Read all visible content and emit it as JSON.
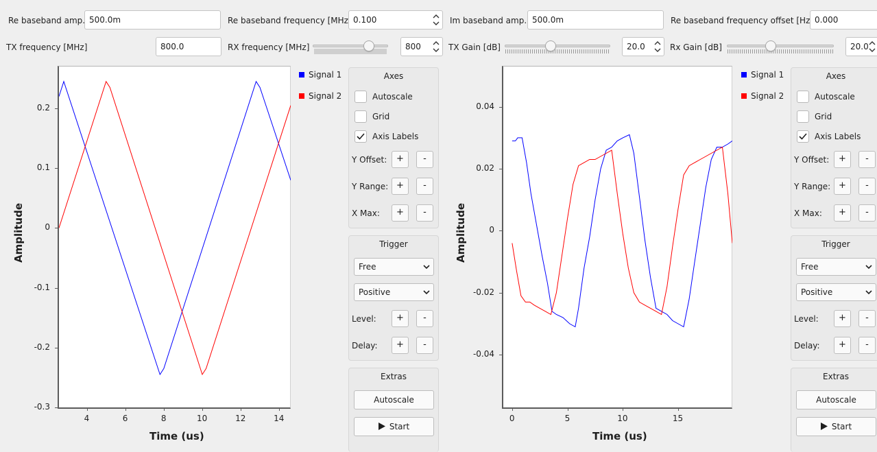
{
  "top_controls": {
    "re_amp": {
      "label": "Re baseband amp.:",
      "value": "500.0m"
    },
    "re_freq": {
      "label": "Re baseband frequency [MHz]",
      "value": "0.100"
    },
    "im_amp": {
      "label": "Im baseband amp.:",
      "value": "500.0m"
    },
    "re_freq_offset": {
      "label": "Re baseband frequency offset  [Hz]",
      "value": "0.000"
    },
    "tx_freq": {
      "label": "TX frequency [MHz]",
      "value": "800.0"
    },
    "rx_freq": {
      "label": "RX frequency [MHz]",
      "value": "800",
      "slider_fraction": 0.78
    },
    "tx_gain": {
      "label": "TX Gain [dB]",
      "value": "20.0",
      "slider_fraction": 0.43
    },
    "rx_gain": {
      "label": "Rx Gain [dB]",
      "value": "20.0",
      "slider_fraction": 0.4
    }
  },
  "legend": {
    "signal1": "Signal 1",
    "signal2": "Signal 2"
  },
  "colors": {
    "signal1": "#0000ff",
    "signal2": "#ff0000"
  },
  "panel": {
    "axes_title": "Axes",
    "autoscale": "Autoscale",
    "grid": "Grid",
    "axis_labels": "Axis Labels",
    "y_offset": "Y Offset:",
    "y_range": "Y Range:",
    "x_max": "X Max:",
    "plus": "+",
    "minus": "-",
    "trigger_title": "Trigger",
    "trigger_mode": "Free",
    "trigger_slope": "Positive",
    "level": "Level:",
    "delay": "Delay:",
    "extras_title": "Extras",
    "autoscale_btn": "Autoscale",
    "start_btn": "Start",
    "autoscale_checked": false,
    "grid_checked": false,
    "axis_labels_checked": true
  },
  "chart_data": [
    {
      "type": "line",
      "xlabel": "Time (us)",
      "ylabel": "Amplitude",
      "xlim": [
        2.55,
        14.6
      ],
      "ylim": [
        -0.3,
        0.27
      ],
      "xticks": [
        "4",
        "6",
        "8",
        "10",
        "12",
        "14"
      ],
      "yticks": [
        "0.2",
        "0.1",
        "0",
        "-0.1",
        "-0.2",
        "-0.3"
      ],
      "grid": false,
      "series": [
        {
          "name": "Signal 1",
          "x": [
            2.55,
            2.8,
            7.8,
            8.0,
            12.8,
            13.0,
            14.6
          ],
          "y": [
            0.22,
            0.245,
            -0.245,
            -0.235,
            0.245,
            0.235,
            0.08
          ]
        },
        {
          "name": "Signal 2",
          "x": [
            2.55,
            5.0,
            5.2,
            10.0,
            10.2,
            14.6
          ],
          "y": [
            0.0,
            0.245,
            0.235,
            -0.245,
            -0.235,
            0.205
          ]
        }
      ]
    },
    {
      "type": "line",
      "xlabel": "Time (us)",
      "ylabel": "Amplitude",
      "xlim": [
        -0.8,
        19.9
      ],
      "ylim": [
        -0.057,
        0.053
      ],
      "xticks": [
        "0",
        "5",
        "10",
        "15"
      ],
      "yticks": [
        "0.04",
        "0.02",
        "0",
        "-0.02",
        "-0.04"
      ],
      "grid": false,
      "series": [
        {
          "name": "Signal 1",
          "x": [
            0.0,
            0.3,
            0.5,
            0.9,
            1.3,
            1.7,
            2.2,
            2.7,
            3.2,
            3.6,
            4.0,
            4.6,
            5.2,
            5.7,
            6.0,
            6.5,
            7.0,
            7.5,
            8.0,
            8.5,
            9.0,
            9.5,
            10.0,
            10.6,
            11.0,
            11.5,
            12.0,
            12.5,
            13.0,
            13.5,
            14.0,
            14.5,
            15.0,
            15.5,
            16.0,
            16.5,
            17.0,
            17.5,
            18.0,
            18.5,
            19.0,
            19.5,
            19.9
          ],
          "y": [
            0.029,
            0.029,
            0.03,
            0.03,
            0.022,
            0.012,
            0.002,
            -0.008,
            -0.017,
            -0.026,
            -0.027,
            -0.028,
            -0.03,
            -0.031,
            -0.025,
            -0.012,
            -0.002,
            0.01,
            0.02,
            0.026,
            0.027,
            0.029,
            0.03,
            0.031,
            0.025,
            0.011,
            -0.003,
            -0.015,
            -0.025,
            -0.026,
            -0.027,
            -0.029,
            -0.03,
            -0.031,
            -0.022,
            -0.01,
            0.002,
            0.014,
            0.023,
            0.027,
            0.027,
            0.028,
            0.029
          ]
        },
        {
          "name": "Signal 2",
          "x": [
            0.0,
            0.4,
            0.8,
            1.2,
            1.6,
            2.0,
            2.5,
            3.0,
            3.5,
            4.0,
            4.5,
            5.0,
            5.5,
            6.0,
            6.5,
            7.0,
            7.5,
            8.0,
            8.5,
            9.0,
            9.5,
            10.0,
            10.5,
            11.0,
            11.5,
            12.0,
            12.5,
            13.0,
            13.5,
            14.0,
            14.5,
            15.0,
            15.5,
            16.0,
            16.5,
            17.0,
            17.5,
            18.0,
            18.5,
            19.0,
            19.5,
            19.9
          ],
          "y": [
            -0.004,
            -0.013,
            -0.021,
            -0.023,
            -0.023,
            -0.024,
            -0.025,
            -0.026,
            -0.027,
            -0.02,
            -0.008,
            0.004,
            0.015,
            0.021,
            0.022,
            0.023,
            0.023,
            0.024,
            0.025,
            0.026,
            0.012,
            -0.001,
            -0.012,
            -0.02,
            -0.023,
            -0.024,
            -0.025,
            -0.026,
            -0.027,
            -0.018,
            -0.005,
            0.007,
            0.018,
            0.021,
            0.022,
            0.023,
            0.024,
            0.025,
            0.026,
            0.027,
            0.012,
            -0.004
          ]
        }
      ]
    }
  ]
}
